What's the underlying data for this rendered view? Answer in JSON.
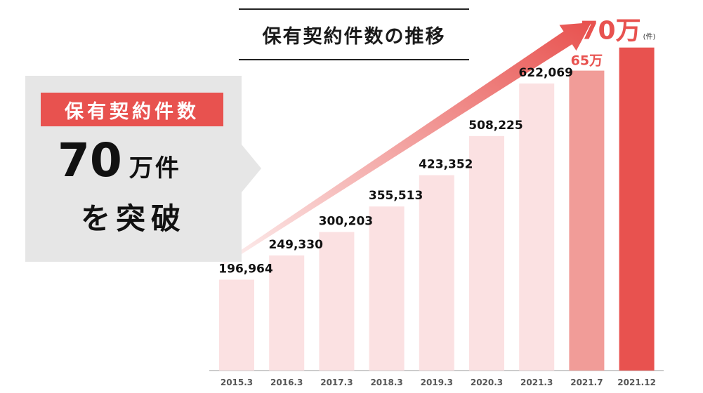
{
  "title": "保有契約件数の推移",
  "callout": {
    "label": "保有契約件数",
    "number": "70",
    "unit": "万件",
    "sub": "を突破"
  },
  "colors": {
    "bar_light": "#fbe1e2",
    "bar_mid": "#f19c98",
    "bar_highlight": "#e8524f",
    "arrow": "#e8524f",
    "label_dark": "#111111",
    "label_accent": "#e8524f"
  },
  "chart_data": {
    "type": "bar",
    "categories": [
      "2015.3",
      "2016.3",
      "2017.3",
      "2018.3",
      "2019.3",
      "2020.3",
      "2021.3",
      "2021.7",
      "2021.12"
    ],
    "values": [
      196964,
      249330,
      300203,
      355513,
      423352,
      508225,
      622069,
      650000,
      700000
    ],
    "value_labels": [
      "196,964",
      "249,330",
      "300,203",
      "355,513",
      "423,352",
      "508,225",
      "622,069",
      "65万",
      "70万"
    ],
    "unit_label": "(件)",
    "title": "保有契約件数の推移",
    "ylim": [
      0,
      730000
    ],
    "grid": false
  }
}
